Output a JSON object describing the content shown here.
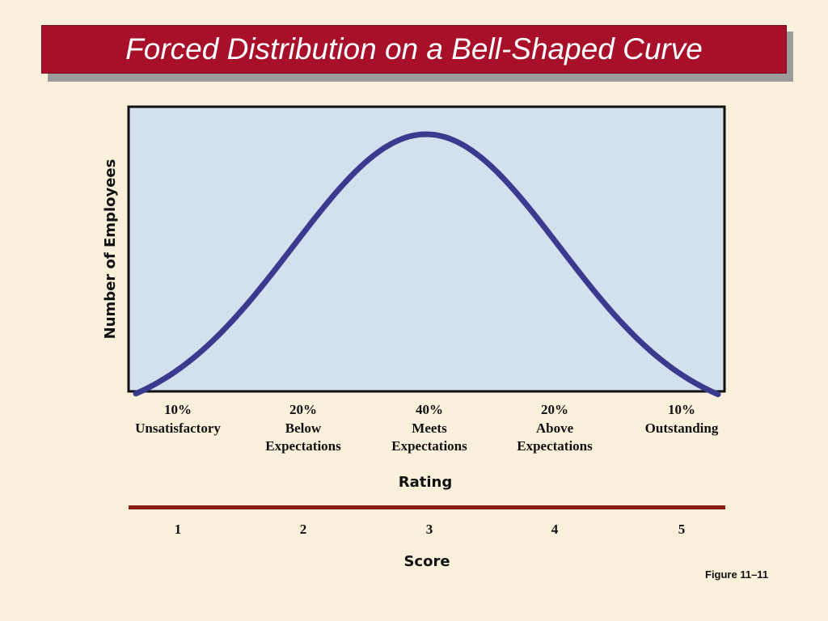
{
  "slide": {
    "title": "Forced Distribution on a Bell-Shaped Curve",
    "figure_label": "Figure 11–11"
  },
  "colors": {
    "title_bg": "#a8102a",
    "page_bg": "#f8f0db",
    "plot_bg": "#d3e0ee",
    "curve": "#3b3a8f",
    "rule": "#8c1a12"
  },
  "chart_data": {
    "type": "line",
    "title": "",
    "ylabel": "Number of Employees",
    "xlabel": "Rating",
    "score_label": "Score",
    "grid": false,
    "curve_shape": "bell (normal distribution)",
    "categories": [
      {
        "percent": "10%",
        "rating": "Unsatisfactory",
        "score": "1",
        "share": 10
      },
      {
        "percent": "20%",
        "rating": "Below Expectations",
        "score": "2",
        "share": 20
      },
      {
        "percent": "40%",
        "rating": "Meets Expectations",
        "score": "3",
        "share": 40
      },
      {
        "percent": "20%",
        "rating": "Above Expectations",
        "score": "4",
        "share": 20
      },
      {
        "percent": "10%",
        "rating": "Outstanding",
        "score": "5",
        "share": 10
      }
    ]
  }
}
